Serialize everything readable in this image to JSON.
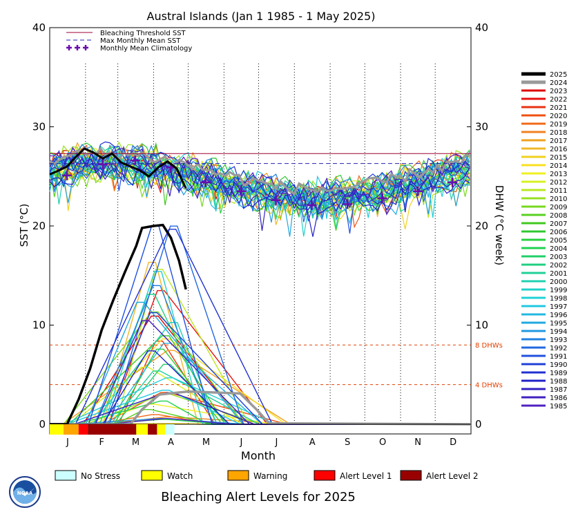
{
  "chart_data": {
    "type": "line",
    "title": "Austral Islands      (Jan 1 1985 - 1 May 2025)",
    "xlabel": "Month",
    "ylabel_left": "SST (°C)",
    "ylabel_right": "DHW (°C week)",
    "ylim": [
      0,
      40
    ],
    "xlim_days": [
      0,
      365
    ],
    "yticks": [
      "0",
      "10",
      "20",
      "30",
      "40"
    ],
    "months": [
      "J",
      "F",
      "M",
      "A",
      "M",
      "J",
      "J",
      "A",
      "S",
      "O",
      "N",
      "D"
    ],
    "thresholds": {
      "bleaching_threshold_sst": 27.3,
      "max_monthly_mean_sst": 26.3,
      "dhw_lines": [
        {
          "value": 8,
          "label": "8 DHWs"
        },
        {
          "value": 4,
          "label": "4 DHWs"
        }
      ]
    },
    "legend_top": [
      {
        "label": "Bleaching Threshold SST",
        "style": "solid",
        "color": "#a00030"
      },
      {
        "label": "Max Monthly Mean SST",
        "style": "dashed",
        "color": "#2020b0"
      },
      {
        "label": "Monthly Mean Climatology",
        "style": "plus",
        "color": "#6a0dad"
      }
    ],
    "climatology": [
      {
        "day": 15,
        "value": 25.1
      },
      {
        "day": 46,
        "value": 26.2
      },
      {
        "day": 74,
        "value": 26.6
      },
      {
        "day": 105,
        "value": 25.9
      },
      {
        "day": 135,
        "value": 24.4
      },
      {
        "day": 166,
        "value": 23.5
      },
      {
        "day": 196,
        "value": 22.6
      },
      {
        "day": 227,
        "value": 22.1
      },
      {
        "day": 258,
        "value": 22.2
      },
      {
        "day": 288,
        "value": 22.8
      },
      {
        "day": 319,
        "value": 23.5
      },
      {
        "day": 349,
        "value": 24.4
      }
    ],
    "series_2025": {
      "name": "2025",
      "color": "#000000",
      "sst": [
        {
          "day": 0,
          "value": 25.2
        },
        {
          "day": 8,
          "value": 25.6
        },
        {
          "day": 15,
          "value": 26.0
        },
        {
          "day": 22,
          "value": 26.9
        },
        {
          "day": 30,
          "value": 27.8
        },
        {
          "day": 38,
          "value": 27.4
        },
        {
          "day": 46,
          "value": 26.8
        },
        {
          "day": 54,
          "value": 27.3
        },
        {
          "day": 62,
          "value": 26.4
        },
        {
          "day": 70,
          "value": 26.0
        },
        {
          "day": 78,
          "value": 25.6
        },
        {
          "day": 86,
          "value": 25.0
        },
        {
          "day": 94,
          "value": 25.9
        },
        {
          "day": 102,
          "value": 26.5
        },
        {
          "day": 110,
          "value": 25.8
        },
        {
          "day": 118,
          "value": 23.8
        }
      ],
      "dhw": [
        {
          "day": 0,
          "value": 0
        },
        {
          "day": 15,
          "value": 0
        },
        {
          "day": 25,
          "value": 2.5
        },
        {
          "day": 35,
          "value": 5.6
        },
        {
          "day": 45,
          "value": 9.5
        },
        {
          "day": 55,
          "value": 12.5
        },
        {
          "day": 65,
          "value": 15.3
        },
        {
          "day": 75,
          "value": 18.0
        },
        {
          "day": 80,
          "value": 19.8
        },
        {
          "day": 90,
          "value": 20.0
        },
        {
          "day": 98,
          "value": 20.1
        },
        {
          "day": 105,
          "value": 18.8
        },
        {
          "day": 112,
          "value": 16.5
        },
        {
          "day": 118,
          "value": 13.6
        }
      ]
    },
    "series_2024": {
      "name": "2024",
      "color": "#999999",
      "dhw": [
        {
          "day": 0,
          "value": 0
        },
        {
          "day": 70,
          "value": 0
        },
        {
          "day": 80,
          "value": 1.5
        },
        {
          "day": 95,
          "value": 3.0
        },
        {
          "day": 120,
          "value": 3.3
        },
        {
          "day": 145,
          "value": 3.2
        },
        {
          "day": 165,
          "value": 3.1
        },
        {
          "day": 180,
          "value": 1.4
        },
        {
          "day": 190,
          "value": 0.1
        },
        {
          "day": 365,
          "value": 0
        }
      ]
    },
    "year_legend": [
      {
        "year": "2025",
        "color": "#000000"
      },
      {
        "year": "2024",
        "color": "#999999"
      },
      {
        "year": "2023",
        "color": "#e00000"
      },
      {
        "year": "2022",
        "color": "#e81010"
      },
      {
        "year": "2021",
        "color": "#e83010"
      },
      {
        "year": "2020",
        "color": "#f05010"
      },
      {
        "year": "2019",
        "color": "#f06818"
      },
      {
        "year": "2018",
        "color": "#f08020"
      },
      {
        "year": "2017",
        "color": "#f0a020"
      },
      {
        "year": "2016",
        "color": "#f0b828"
      },
      {
        "year": "2015",
        "color": "#f0d020"
      },
      {
        "year": "2014",
        "color": "#f8e020"
      },
      {
        "year": "2013",
        "color": "#f0f020"
      },
      {
        "year": "2012",
        "color": "#d8f020"
      },
      {
        "year": "2011",
        "color": "#b8e820"
      },
      {
        "year": "2010",
        "color": "#98e020"
      },
      {
        "year": "2009",
        "color": "#78d820"
      },
      {
        "year": "2008",
        "color": "#58d020"
      },
      {
        "year": "2007",
        "color": "#40c820"
      },
      {
        "year": "2006",
        "color": "#30c830"
      },
      {
        "year": "2005",
        "color": "#28d040"
      },
      {
        "year": "2004",
        "color": "#20d050"
      },
      {
        "year": "2003",
        "color": "#20d068"
      },
      {
        "year": "2002",
        "color": "#20d080"
      },
      {
        "year": "2001",
        "color": "#20d098"
      },
      {
        "year": "2000",
        "color": "#20d0b0"
      },
      {
        "year": "1999",
        "color": "#20d0c8"
      },
      {
        "year": "1998",
        "color": "#20d0d8"
      },
      {
        "year": "1997",
        "color": "#20c8e0"
      },
      {
        "year": "1996",
        "color": "#20b8e0"
      },
      {
        "year": "1995",
        "color": "#20a8e0"
      },
      {
        "year": "1994",
        "color": "#2098e0"
      },
      {
        "year": "1993",
        "color": "#2080e0"
      },
      {
        "year": "1992",
        "color": "#2068e0"
      },
      {
        "year": "1991",
        "color": "#2050e0"
      },
      {
        "year": "1990",
        "color": "#2040d8"
      },
      {
        "year": "1989",
        "color": "#2030d0"
      },
      {
        "year": "1988",
        "color": "#2020c8"
      },
      {
        "year": "1987",
        "color": "#3020c0"
      },
      {
        "year": "1986",
        "color": "#4020c0"
      },
      {
        "year": "1985",
        "color": "#5020c0"
      }
    ],
    "alert_bar": [
      {
        "from": 0,
        "to": 12,
        "color": "#ffff00"
      },
      {
        "from": 12,
        "to": 25,
        "color": "#ffa500"
      },
      {
        "from": 25,
        "to": 33,
        "color": "#ff0000"
      },
      {
        "from": 33,
        "to": 75,
        "color": "#990000"
      },
      {
        "from": 75,
        "to": 85,
        "color": "#ffff00"
      },
      {
        "from": 85,
        "to": 93,
        "color": "#990000"
      },
      {
        "from": 93,
        "to": 100,
        "color": "#ffff00"
      },
      {
        "from": 100,
        "to": 108,
        "color": "#ccffff"
      }
    ],
    "alert_legend": [
      {
        "label": "No Stress",
        "color": "#ccffff"
      },
      {
        "label": "Watch",
        "color": "#ffff00"
      },
      {
        "label": "Warning",
        "color": "#ffa500"
      },
      {
        "label": "Alert Level 1",
        "color": "#ff0000"
      },
      {
        "label": "Alert Level 2",
        "color": "#990000"
      }
    ],
    "footer_title": "Bleaching Alert Levels for 2025"
  },
  "logo": {
    "text": "NOAA",
    "icon": "noaa-logo-icon"
  }
}
